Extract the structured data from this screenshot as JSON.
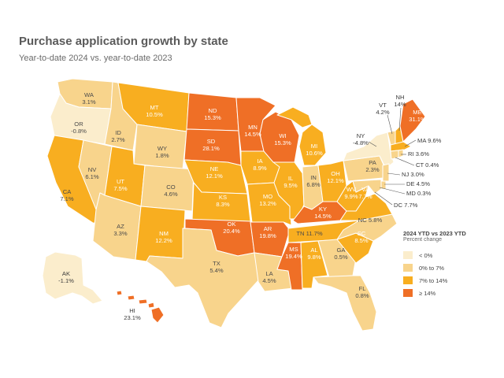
{
  "title": "Purchase application growth by state",
  "subtitle": "Year-to-date 2024 vs. year-to-date 2023",
  "colors": {
    "neg": "#fbedcc",
    "low": "#f8d48c",
    "mid": "#f8ae20",
    "high": "#ef6f26",
    "border": "#ffffff"
  },
  "legend": {
    "title": "2024 YTD vs 2023 YTD",
    "subtitle": "Percent change",
    "items": [
      {
        "label": "< 0%",
        "bin": "neg"
      },
      {
        "label": "0% to 7%",
        "bin": "low"
      },
      {
        "label": "7% to 14%",
        "bin": "mid"
      },
      {
        "label": "≥ 14%",
        "bin": "high"
      }
    ]
  },
  "states": {
    "WA": {
      "name": "WA",
      "value": "3.1%",
      "bin": "low"
    },
    "OR": {
      "name": "OR",
      "value": "-0.8%",
      "bin": "neg"
    },
    "CA": {
      "name": "CA",
      "value": "7.1%",
      "bin": "mid"
    },
    "NV": {
      "name": "NV",
      "value": "6.1%",
      "bin": "low"
    },
    "ID": {
      "name": "ID",
      "value": "2.7%",
      "bin": "low"
    },
    "MT": {
      "name": "MT",
      "value": "10.5%",
      "bin": "mid"
    },
    "WY": {
      "name": "WY",
      "value": "1.8%",
      "bin": "low"
    },
    "UT": {
      "name": "UT",
      "value": "7.5%",
      "bin": "mid"
    },
    "AZ": {
      "name": "AZ",
      "value": "3.3%",
      "bin": "low"
    },
    "CO": {
      "name": "CO",
      "value": "4.6%",
      "bin": "low"
    },
    "NM": {
      "name": "NM",
      "value": "12.2%",
      "bin": "mid"
    },
    "ND": {
      "name": "ND",
      "value": "15.3%",
      "bin": "high"
    },
    "SD": {
      "name": "SD",
      "value": "28.1%",
      "bin": "high"
    },
    "NE": {
      "name": "NE",
      "value": "12.1%",
      "bin": "mid"
    },
    "KS": {
      "name": "KS",
      "value": "8.3%",
      "bin": "mid"
    },
    "OK": {
      "name": "OK",
      "value": "20.4%",
      "bin": "high"
    },
    "TX": {
      "name": "TX",
      "value": "5.4%",
      "bin": "low"
    },
    "MN": {
      "name": "MN",
      "value": "14.5%",
      "bin": "high"
    },
    "IA": {
      "name": "IA",
      "value": "8.9%",
      "bin": "mid"
    },
    "MO": {
      "name": "MO",
      "value": "13.2%",
      "bin": "mid"
    },
    "AR": {
      "name": "AR",
      "value": "19.8%",
      "bin": "high"
    },
    "LA": {
      "name": "LA",
      "value": "4.5%",
      "bin": "low"
    },
    "WI": {
      "name": "WI",
      "value": "15.3%",
      "bin": "high"
    },
    "IL": {
      "name": "IL",
      "value": "9.5%",
      "bin": "mid"
    },
    "MI": {
      "name": "MI",
      "value": "10.6%",
      "bin": "mid"
    },
    "IN": {
      "name": "IN",
      "value": "6.8%",
      "bin": "low"
    },
    "OH": {
      "name": "OH",
      "value": "12.1%",
      "bin": "mid"
    },
    "KY": {
      "name": "KY",
      "value": "14.5%",
      "bin": "high"
    },
    "TN": {
      "name": "TN",
      "value": "11.7%",
      "bin": "mid"
    },
    "MS": {
      "name": "MS",
      "value": "19.4%",
      "bin": "high"
    },
    "AL": {
      "name": "AL",
      "value": "9.8%",
      "bin": "mid"
    },
    "GA": {
      "name": "GA",
      "value": "0.5%",
      "bin": "low"
    },
    "FL": {
      "name": "FL",
      "value": "0.8%",
      "bin": "low"
    },
    "SC": {
      "name": "SC",
      "value": "8.5%",
      "bin": "mid"
    },
    "NC": {
      "name": "NC",
      "value": "5.8%",
      "bin": "low"
    },
    "VA": {
      "name": "VA",
      "value": "7.7%",
      "bin": "mid"
    },
    "WV": {
      "name": "WV",
      "value": "9.9%",
      "bin": "mid"
    },
    "PA": {
      "name": "PA",
      "value": "2.3%",
      "bin": "low"
    },
    "NY": {
      "name": "NY",
      "value": "-4.8%",
      "bin": "neg"
    },
    "VT": {
      "name": "VT",
      "value": "4.2%",
      "bin": "low"
    },
    "NH": {
      "name": "NH",
      "value": "14%",
      "bin": "mid"
    },
    "ME": {
      "name": "ME",
      "value": "31.1%",
      "bin": "high"
    },
    "MA": {
      "name": "MA",
      "value": "9.6%",
      "bin": "mid"
    },
    "RI": {
      "name": "RI",
      "value": "3.6%",
      "bin": "low"
    },
    "CT": {
      "name": "CT",
      "value": "0.4%",
      "bin": "low"
    },
    "NJ": {
      "name": "NJ",
      "value": "3.0%",
      "bin": "low"
    },
    "DE": {
      "name": "DE",
      "value": "4.5%",
      "bin": "low"
    },
    "MD": {
      "name": "MD",
      "value": "0.3%",
      "bin": "low"
    },
    "DC": {
      "name": "DC",
      "value": "7.7%",
      "bin": "mid"
    },
    "AK": {
      "name": "AK",
      "value": "-1.1%",
      "bin": "neg"
    },
    "HI": {
      "name": "HI",
      "value": "23.1%",
      "bin": "high"
    }
  }
}
